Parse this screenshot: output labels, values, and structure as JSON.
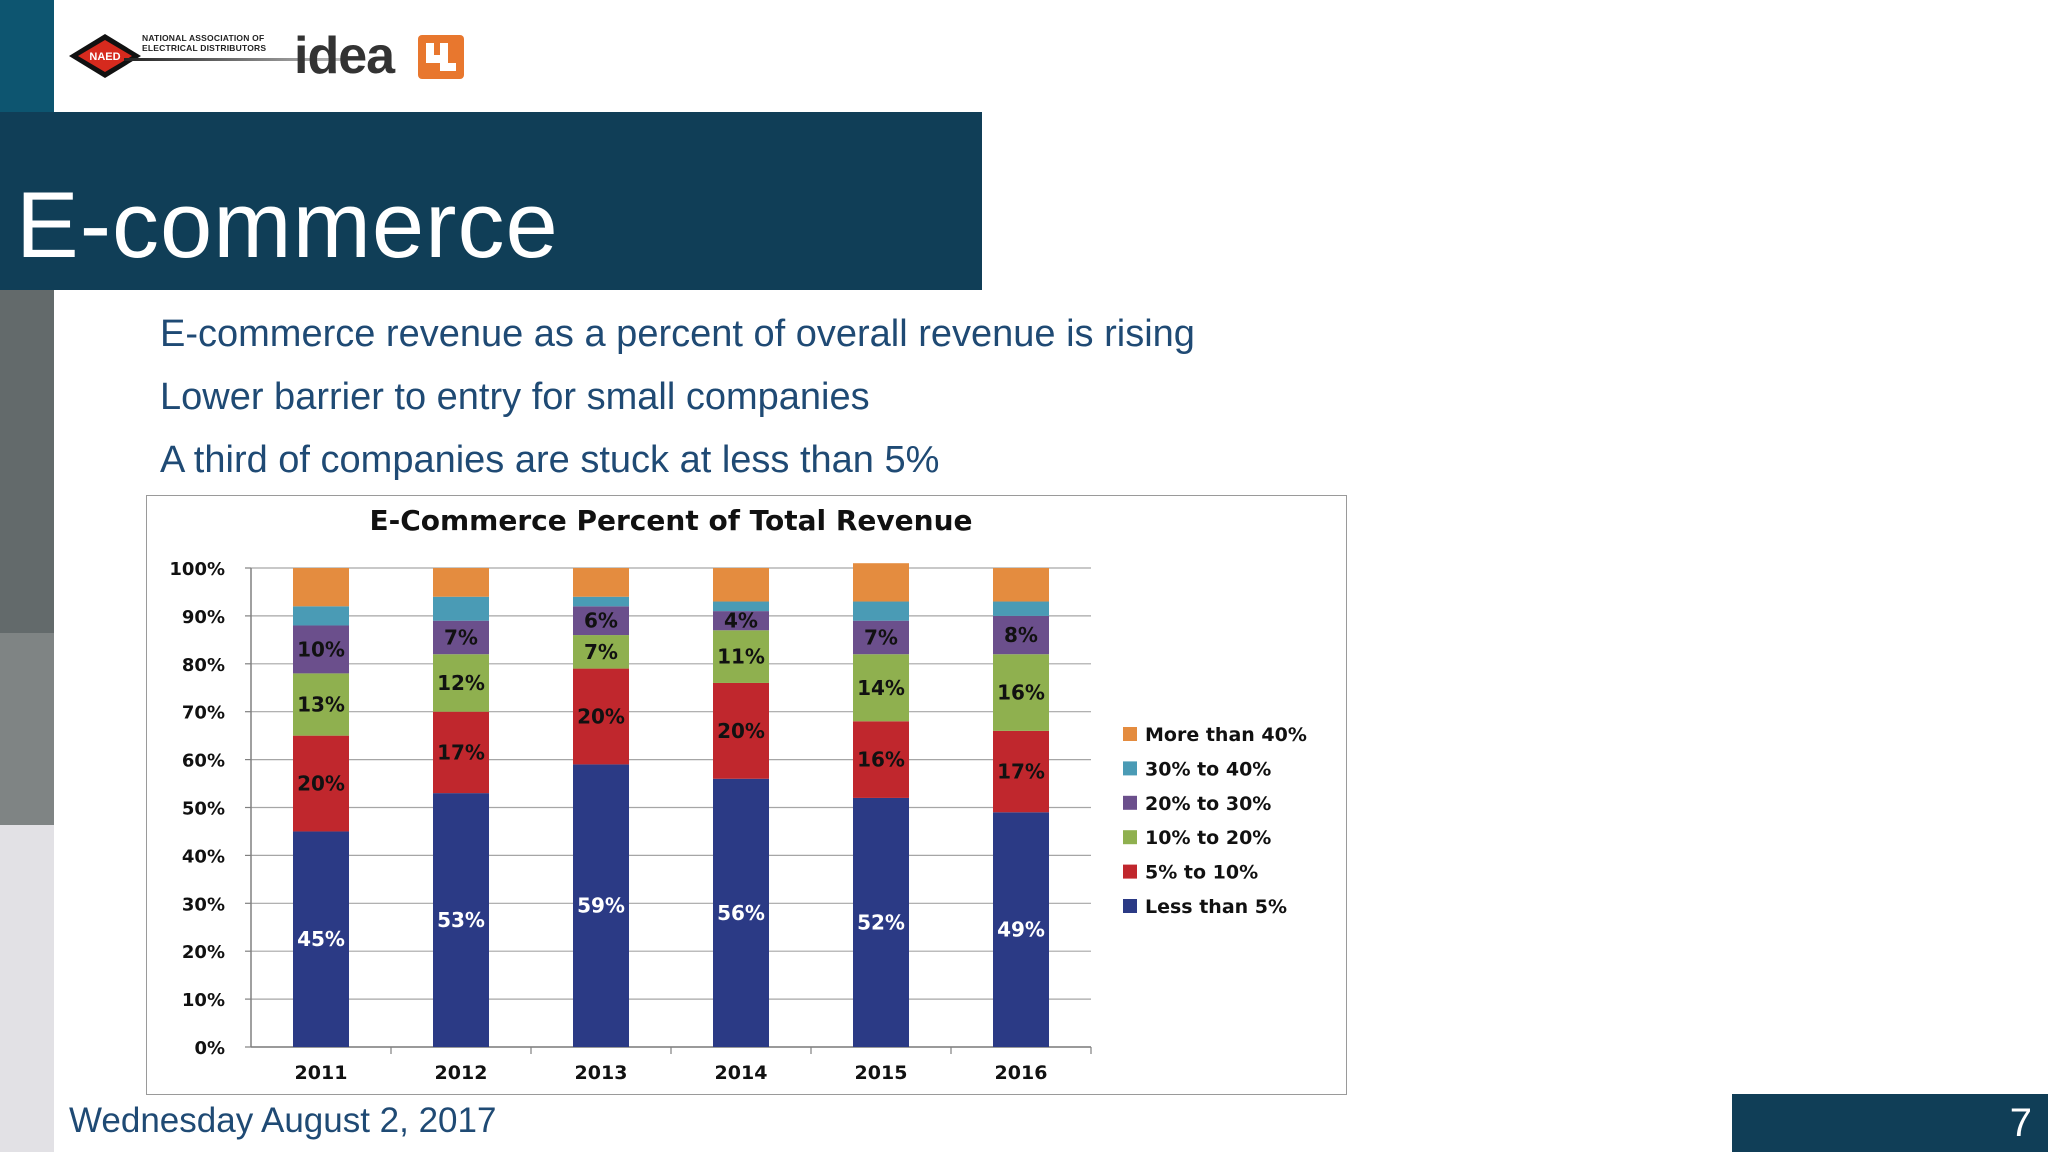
{
  "header": {
    "org_name_line1": "NATIONAL ASSOCIATION OF",
    "org_name_line2": "ELECTRICAL DISTRIBUTORS",
    "org_badge": "NAED",
    "brand_word": "idea",
    "brand_colors": {
      "badge_red": "#d62a1e",
      "idea_orange": "#e8772e",
      "idea_text": "#333333"
    }
  },
  "slide": {
    "title": "E-commerce",
    "bullets": [
      "E-commerce revenue as a percent of overall revenue is rising",
      "Lower barrier to entry for small companies",
      "A third of companies are stuck at less than 5%"
    ],
    "date": "Wednesday August 2, 2017",
    "page_number": "7",
    "colors": {
      "title_bar": "#103e57",
      "bullet_text": "#1f4a74"
    }
  },
  "chart_data": {
    "type": "bar",
    "stacked": true,
    "title": "E-Commerce Percent of Total Revenue",
    "categories": [
      "2011",
      "2012",
      "2013",
      "2014",
      "2015",
      "2016"
    ],
    "ylim": [
      0,
      100
    ],
    "yticks": [
      "0%",
      "10%",
      "20%",
      "30%",
      "40%",
      "50%",
      "60%",
      "70%",
      "80%",
      "90%",
      "100%"
    ],
    "grid": true,
    "legend_position": "right",
    "series": [
      {
        "name": "Less than 5%",
        "color": "#2b3a85",
        "label_color": "#ffffff",
        "values": [
          45,
          53,
          59,
          56,
          52,
          49
        ],
        "labels": [
          "45%",
          "53%",
          "59%",
          "56%",
          "52%",
          "49%"
        ]
      },
      {
        "name": "5% to 10%",
        "color": "#c0272d",
        "label_color": "#111111",
        "values": [
          20,
          17,
          20,
          20,
          16,
          17
        ],
        "labels": [
          "20%",
          "17%",
          "20%",
          "20%",
          "16%",
          "17%"
        ]
      },
      {
        "name": "10% to 20%",
        "color": "#8fb04f",
        "label_color": "#111111",
        "values": [
          13,
          12,
          7,
          11,
          14,
          16
        ],
        "labels": [
          "13%",
          "12%",
          "7%",
          "11%",
          "14%",
          "16%"
        ]
      },
      {
        "name": "20% to 30%",
        "color": "#6b4f8c",
        "label_color": "#111111",
        "values": [
          10,
          7,
          6,
          4,
          7,
          8
        ],
        "labels": [
          "10%",
          "7%",
          "6%",
          "4%",
          "7%",
          "8%"
        ]
      },
      {
        "name": "30% to 40%",
        "color": "#4a9bb5",
        "label_color": "#111111",
        "values": [
          4,
          5,
          2,
          2,
          4,
          3
        ],
        "labels": [
          "",
          "",
          "",
          "",
          "",
          ""
        ]
      },
      {
        "name": "More than 40%",
        "color": "#e48c3f",
        "label_color": "#111111",
        "values": [
          8,
          6,
          6,
          7,
          8,
          7
        ],
        "labels": [
          "",
          "",
          "",
          "",
          "",
          ""
        ]
      }
    ]
  }
}
